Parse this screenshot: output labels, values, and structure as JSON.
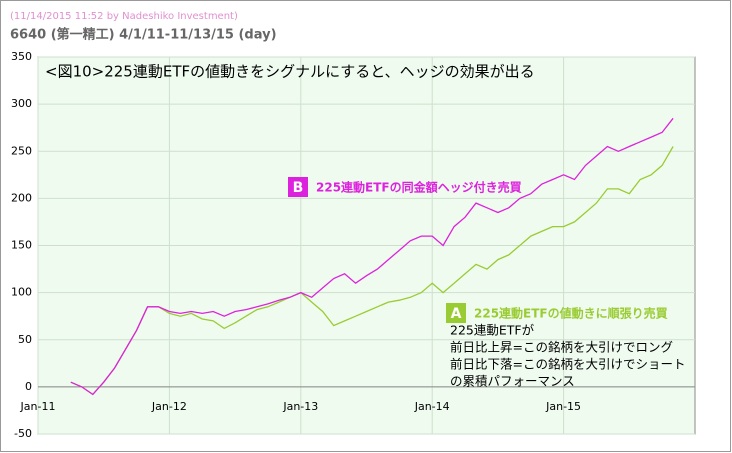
{
  "chart_data": {
    "type": "line",
    "source": "(11/14/2015 11:52 by Nadeshiko Investment)",
    "subtitle": "6640 (第一精工) 4/1/11-11/13/15 (day)",
    "title": "<図10>225連動ETFの値動きをシグナルにすると、ヘッジの効果が出る",
    "notes": [
      "225連動ETFが",
      "前日比上昇=この銘柄を大引けでロング",
      "前日比下落=この銘柄を大引けでショート",
      "の累積パフォーマンス"
    ],
    "x": [
      "2011-04",
      "2011-05",
      "2011-06",
      "2011-07",
      "2011-08",
      "2011-09",
      "2011-10",
      "2011-11",
      "2011-12",
      "2012-01",
      "2012-02",
      "2012-03",
      "2012-04",
      "2012-05",
      "2012-06",
      "2012-07",
      "2012-08",
      "2012-09",
      "2012-10",
      "2012-11",
      "2012-12",
      "2013-01",
      "2013-02",
      "2013-03",
      "2013-04",
      "2013-05",
      "2013-06",
      "2013-07",
      "2013-08",
      "2013-09",
      "2013-10",
      "2013-11",
      "2013-12",
      "2014-01",
      "2014-02",
      "2014-03",
      "2014-04",
      "2014-05",
      "2014-06",
      "2014-07",
      "2014-08",
      "2014-09",
      "2014-10",
      "2014-11",
      "2014-12",
      "2015-01",
      "2015-02",
      "2015-03",
      "2015-04",
      "2015-05",
      "2015-06",
      "2015-07",
      "2015-08",
      "2015-09",
      "2015-10",
      "2015-11"
    ],
    "series": [
      {
        "name": "225連動ETFの同金額ヘッジ付き売買",
        "badge": "B",
        "color": "#dd22dd",
        "values": [
          5,
          0,
          -8,
          5,
          20,
          40,
          60,
          85,
          85,
          80,
          78,
          80,
          78,
          80,
          75,
          80,
          82,
          85,
          88,
          92,
          95,
          100,
          95,
          105,
          115,
          120,
          110,
          118,
          125,
          135,
          145,
          155,
          160,
          160,
          150,
          170,
          180,
          195,
          190,
          185,
          190,
          200,
          205,
          215,
          220,
          225,
          220,
          235,
          245,
          255,
          250,
          255,
          260,
          265,
          270,
          285
        ]
      },
      {
        "name": "225連動ETFの値動きに順張り売買",
        "badge": "A",
        "color": "#99cc33",
        "values": [
          5,
          0,
          -8,
          5,
          20,
          40,
          60,
          85,
          85,
          78,
          75,
          78,
          72,
          70,
          62,
          68,
          75,
          82,
          85,
          90,
          95,
          100,
          90,
          80,
          65,
          70,
          75,
          80,
          85,
          90,
          92,
          95,
          100,
          110,
          100,
          110,
          120,
          130,
          125,
          135,
          140,
          150,
          160,
          165,
          170,
          170,
          175,
          185,
          195,
          210,
          210,
          205,
          220,
          225,
          235,
          255
        ]
      }
    ],
    "xlim": [
      "2011-01",
      "2016-01"
    ],
    "xticks": [
      {
        "value": "2011-01",
        "label": "Jan-11"
      },
      {
        "value": "2012-01",
        "label": "Jan-12"
      },
      {
        "value": "2013-01",
        "label": "Jan-13"
      },
      {
        "value": "2014-01",
        "label": "Jan-14"
      },
      {
        "value": "2015-01",
        "label": "Jan-15"
      }
    ],
    "ylim": [
      -50,
      350
    ],
    "yticks": [
      -50,
      0,
      50,
      100,
      150,
      200,
      250,
      300,
      350
    ],
    "grid": true
  }
}
